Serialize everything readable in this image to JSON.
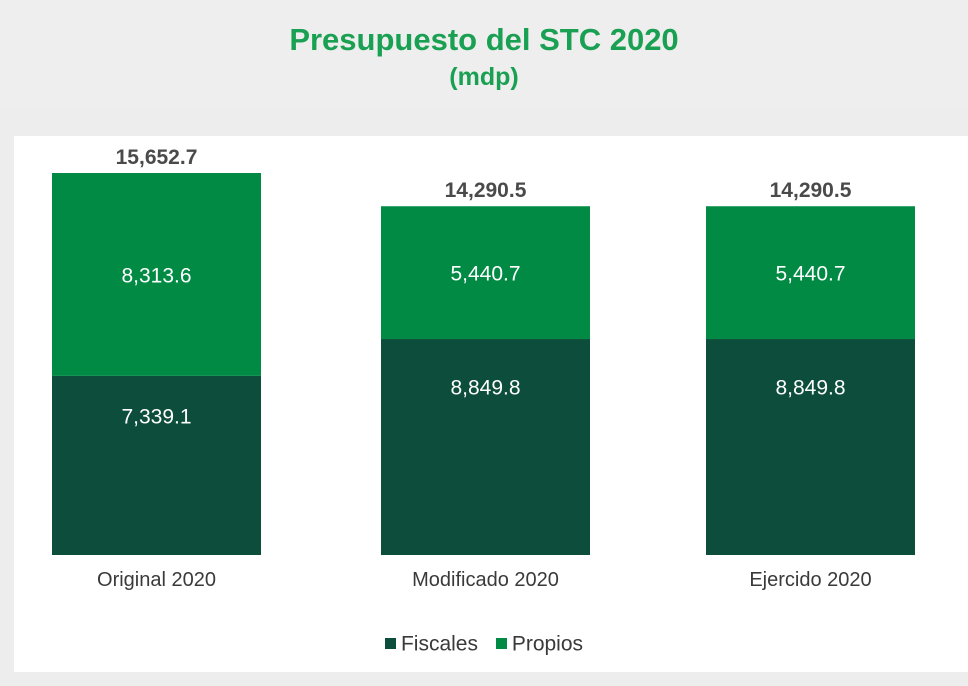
{
  "colors": {
    "fiscales": "#0d4d3b",
    "propios": "#008a44",
    "title": "#1aa052",
    "value_text": "#4a4a4a"
  },
  "chart_data": {
    "type": "bar",
    "stacked": true,
    "title": "Presupuesto del STC 2020",
    "subtitle": "(mdp)",
    "categories": [
      "Original 2020",
      "Modificado 2020",
      "Ejercido 2020"
    ],
    "series": [
      {
        "name": "Fiscales",
        "values": [
          7339.1,
          8849.8,
          8849.8
        ],
        "labels": [
          "7,339.1",
          "8,849.8",
          "8,849.8"
        ]
      },
      {
        "name": "Propios",
        "values": [
          8313.6,
          5440.7,
          5440.7
        ],
        "labels": [
          "8,313.6",
          "5,440.7",
          "5,440.7"
        ]
      }
    ],
    "totals": [
      15652.7,
      14290.5,
      14290.5
    ],
    "total_labels": [
      "15,652.7",
      "14,290.5",
      "14,290.5"
    ],
    "xlabel": "",
    "ylabel": "",
    "grid": false,
    "legend_position": "bottom"
  }
}
